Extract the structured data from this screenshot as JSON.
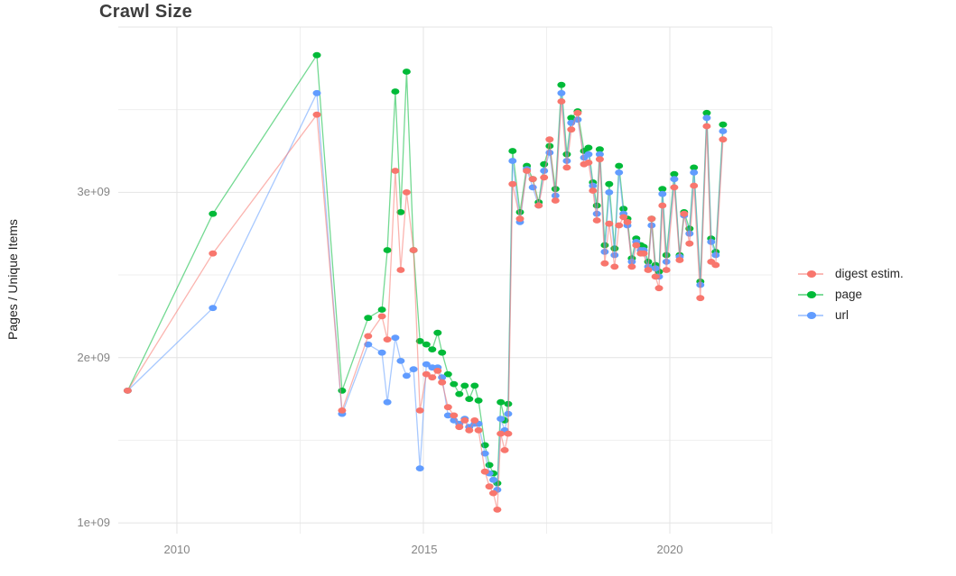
{
  "title": "Crawl Size",
  "chart_data": {
    "type": "line",
    "title": "Crawl Size",
    "xlabel": "",
    "ylabel": "Pages / Unique Items",
    "unit": "pages (value × 1e9)",
    "x_tick_labels": [
      "2010",
      "2015",
      "2020"
    ],
    "y_tick_labels": [
      "1e+09",
      "2e+09",
      "3e+09"
    ],
    "xlim": [
      2008.81,
      2022.07
    ],
    "ylim": [
      0.935,
      4.0
    ],
    "grid": {
      "major_x": [
        2010,
        2015,
        2020
      ],
      "minor_x": [
        2012.5,
        2017.5,
        2022.07
      ],
      "major_y": [
        1,
        2,
        3,
        4
      ],
      "minor_y": [
        1.5,
        2.5,
        3.5
      ]
    },
    "legend_position": "right",
    "x": [
      2009.0,
      2010.73,
      2012.84,
      2013.35,
      2013.88,
      2014.16,
      2014.27,
      2014.43,
      2014.54,
      2014.66,
      2014.8,
      2014.93,
      2015.06,
      2015.18,
      2015.29,
      2015.38,
      2015.5,
      2015.62,
      2015.73,
      2015.84,
      2015.93,
      2016.04,
      2016.12,
      2016.25,
      2016.34,
      2016.42,
      2016.5,
      2016.57,
      2016.65,
      2016.72,
      2016.81,
      2016.96,
      2017.1,
      2017.22,
      2017.34,
      2017.45,
      2017.56,
      2017.68,
      2017.8,
      2017.91,
      2018.0,
      2018.13,
      2018.26,
      2018.35,
      2018.44,
      2018.52,
      2018.58,
      2018.68,
      2018.77,
      2018.88,
      2018.97,
      2019.06,
      2019.14,
      2019.23,
      2019.32,
      2019.41,
      2019.47,
      2019.56,
      2019.63,
      2019.71,
      2019.78,
      2019.85,
      2019.93,
      2020.09,
      2020.2,
      2020.29,
      2020.4,
      2020.49,
      2020.62,
      2020.75,
      2020.84,
      2020.93,
      2021.08
    ],
    "series": [
      {
        "name": "digest estim.",
        "color": "#F8766D",
        "values": [
          1.8,
          2.63,
          3.47,
          1.68,
          2.13,
          2.25,
          2.11,
          3.13,
          2.53,
          3.0,
          2.65,
          1.68,
          1.9,
          1.88,
          1.92,
          1.85,
          1.7,
          1.65,
          1.58,
          1.62,
          1.56,
          1.62,
          1.56,
          1.31,
          1.22,
          1.18,
          1.08,
          1.54,
          1.44,
          1.54,
          3.05,
          2.84,
          3.13,
          3.08,
          2.92,
          3.09,
          3.32,
          2.95,
          3.55,
          3.15,
          3.38,
          3.48,
          3.17,
          3.18,
          3.01,
          2.83,
          3.2,
          2.57,
          2.81,
          2.55,
          2.8,
          2.85,
          2.82,
          2.55,
          2.68,
          2.63,
          2.63,
          2.53,
          2.84,
          2.49,
          2.42,
          2.92,
          2.53,
          3.03,
          2.59,
          2.87,
          2.69,
          3.04,
          2.36,
          3.4,
          2.58,
          2.56,
          3.32
        ]
      },
      {
        "name": "page",
        "color": "#00BA38",
        "values": [
          1.8,
          2.87,
          3.83,
          1.8,
          2.24,
          2.29,
          2.65,
          3.61,
          2.88,
          3.73,
          2.65,
          2.1,
          2.08,
          2.05,
          2.15,
          2.03,
          1.9,
          1.84,
          1.78,
          1.83,
          1.75,
          1.83,
          1.74,
          1.47,
          1.35,
          1.3,
          1.24,
          1.73,
          1.62,
          1.72,
          3.25,
          2.88,
          3.16,
          3.08,
          2.94,
          3.17,
          3.28,
          3.02,
          3.65,
          3.23,
          3.45,
          3.49,
          3.25,
          3.27,
          3.06,
          2.92,
          3.26,
          2.68,
          3.05,
          2.66,
          3.16,
          2.9,
          2.84,
          2.6,
          2.72,
          2.68,
          2.67,
          2.58,
          2.84,
          2.56,
          2.52,
          3.02,
          2.62,
          3.11,
          2.62,
          2.88,
          2.78,
          3.15,
          2.46,
          3.48,
          2.72,
          2.64,
          3.41
        ]
      },
      {
        "name": "url",
        "color": "#619CFF",
        "values": [
          1.8,
          2.3,
          3.6,
          1.66,
          2.08,
          2.03,
          1.73,
          2.12,
          1.98,
          1.89,
          1.93,
          1.33,
          1.96,
          1.94,
          1.94,
          1.88,
          1.65,
          1.62,
          1.6,
          1.63,
          1.58,
          1.6,
          1.6,
          1.42,
          1.3,
          1.26,
          1.2,
          1.63,
          1.56,
          1.66,
          3.19,
          2.82,
          3.14,
          3.03,
          2.92,
          3.13,
          3.24,
          2.98,
          3.6,
          3.19,
          3.42,
          3.44,
          3.21,
          3.23,
          3.04,
          2.87,
          3.23,
          2.64,
          3.0,
          2.62,
          3.12,
          2.87,
          2.8,
          2.58,
          2.7,
          2.65,
          2.65,
          2.55,
          2.8,
          2.54,
          2.49,
          2.99,
          2.58,
          3.08,
          2.61,
          2.86,
          2.75,
          3.12,
          2.44,
          3.45,
          2.7,
          2.62,
          3.37
        ]
      }
    ]
  },
  "colors": {
    "grid_major": "#e4e4e4",
    "grid_minor": "#efefef",
    "tick_label": "#858585",
    "title": "#3d3d3d"
  }
}
